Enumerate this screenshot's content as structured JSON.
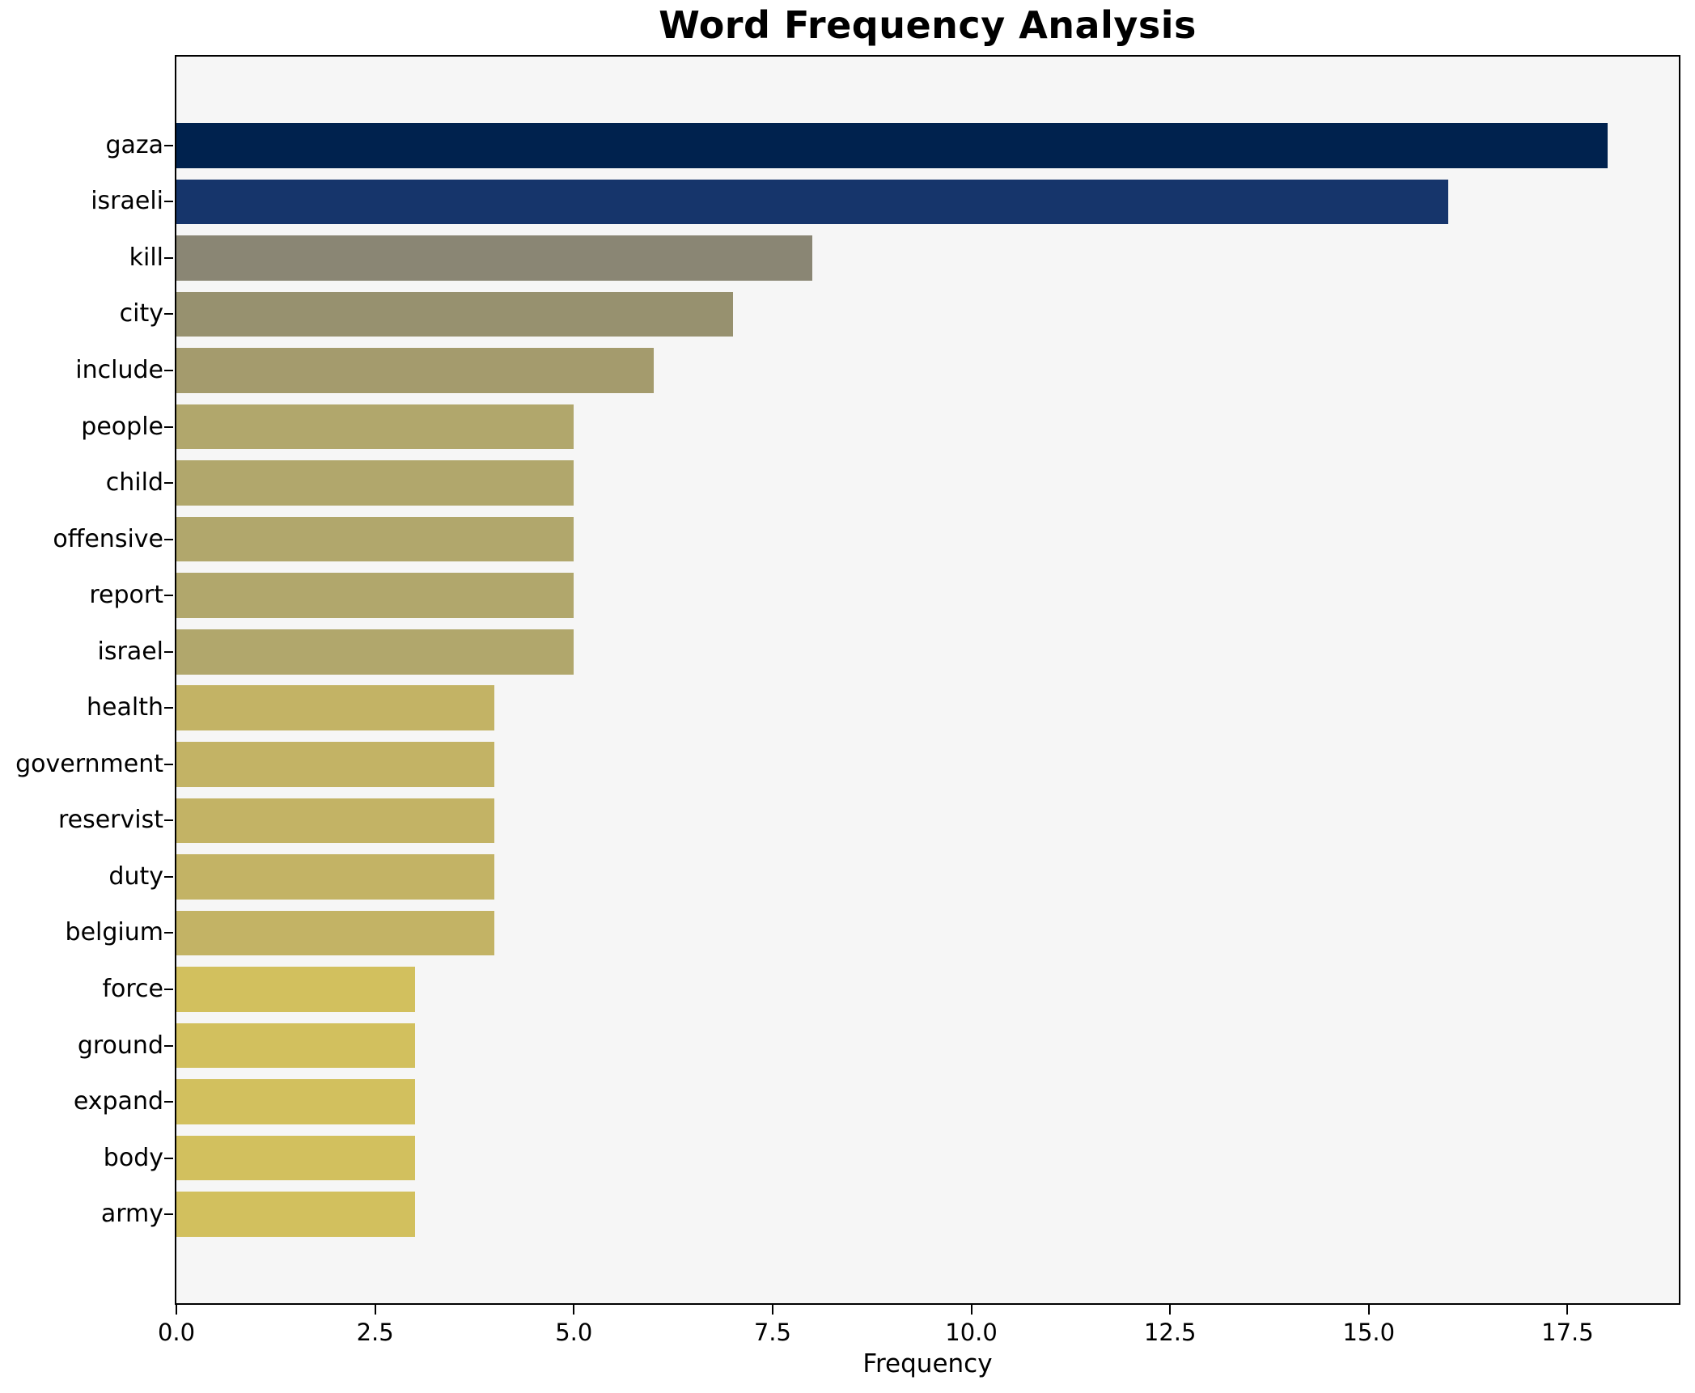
{
  "chart_data": {
    "type": "bar",
    "orientation": "horizontal",
    "title": "Word Frequency Analysis",
    "xlabel": "Frequency",
    "ylabel": "",
    "categories": [
      "gaza",
      "israeli",
      "kill",
      "city",
      "include",
      "people",
      "child",
      "offensive",
      "report",
      "israel",
      "health",
      "government",
      "reservist",
      "duty",
      "belgium",
      "force",
      "ground",
      "expand",
      "body",
      "army"
    ],
    "values": [
      18,
      16,
      8,
      7,
      6,
      5,
      5,
      5,
      5,
      5,
      4,
      4,
      4,
      4,
      4,
      3,
      3,
      3,
      3,
      3
    ],
    "bar_colors": [
      "#00224e",
      "#16356b",
      "#8a8674",
      "#97916f",
      "#a49b6d",
      "#b1a76c",
      "#b1a76c",
      "#b1a76c",
      "#b1a76c",
      "#b1a76c",
      "#c3b365",
      "#c3b365",
      "#c3b365",
      "#c3b365",
      "#c3b365",
      "#d2c05e",
      "#d2c05e",
      "#d2c05e",
      "#d2c05e",
      "#d2c05e"
    ],
    "xlim": [
      0,
      18.9
    ],
    "xticks": [
      {
        "value": 0,
        "label": "0.0"
      },
      {
        "value": 2.5,
        "label": "2.5"
      },
      {
        "value": 5,
        "label": "5.0"
      },
      {
        "value": 7.5,
        "label": "7.5"
      },
      {
        "value": 10,
        "label": "10.0"
      },
      {
        "value": 12.5,
        "label": "12.5"
      },
      {
        "value": 15,
        "label": "15.0"
      },
      {
        "value": 17.5,
        "label": "17.5"
      }
    ],
    "grid": false,
    "legend": "none",
    "plot_background": "#f6f6f6",
    "figure_background": "#ffffff",
    "spine_color": "#000000"
  }
}
